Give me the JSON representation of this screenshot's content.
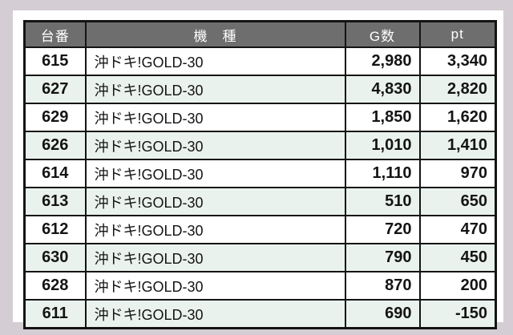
{
  "page": {
    "background_color": "#d4cdd3",
    "card_color": "#ffffff"
  },
  "chart_data": {
    "type": "table",
    "columns": [
      {
        "key": "machine_number",
        "label": "台番"
      },
      {
        "key": "model",
        "label": "機　種"
      },
      {
        "key": "game_count",
        "label": "G数"
      },
      {
        "key": "points",
        "label": "pt"
      }
    ],
    "rows": [
      [
        "615",
        "沖ドキ!GOLD-30",
        "2,980",
        "3,340"
      ],
      [
        "627",
        "沖ドキ!GOLD-30",
        "4,830",
        "2,820"
      ],
      [
        "629",
        "沖ドキ!GOLD-30",
        "1,850",
        "1,620"
      ],
      [
        "626",
        "沖ドキ!GOLD-30",
        "1,010",
        "1,410"
      ],
      [
        "614",
        "沖ドキ!GOLD-30",
        "1,110",
        "970"
      ],
      [
        "613",
        "沖ドキ!GOLD-30",
        "510",
        "650"
      ],
      [
        "612",
        "沖ドキ!GOLD-30",
        "720",
        "470"
      ],
      [
        "630",
        "沖ドキ!GOLD-30",
        "790",
        "450"
      ],
      [
        "628",
        "沖ドキ!GOLD-30",
        "870",
        "200"
      ],
      [
        "611",
        "沖ドキ!GOLD-30",
        "690",
        "-150"
      ]
    ],
    "colors": {
      "header_bg": "#6e6e6e",
      "header_text": "#ffffff",
      "row_bg": "#ffffff",
      "row_alt_bg": "#eaf2ed",
      "border": "#141414",
      "text": "#141414"
    },
    "layout": {
      "grid": "all-borders",
      "alternating_rows": true
    }
  }
}
